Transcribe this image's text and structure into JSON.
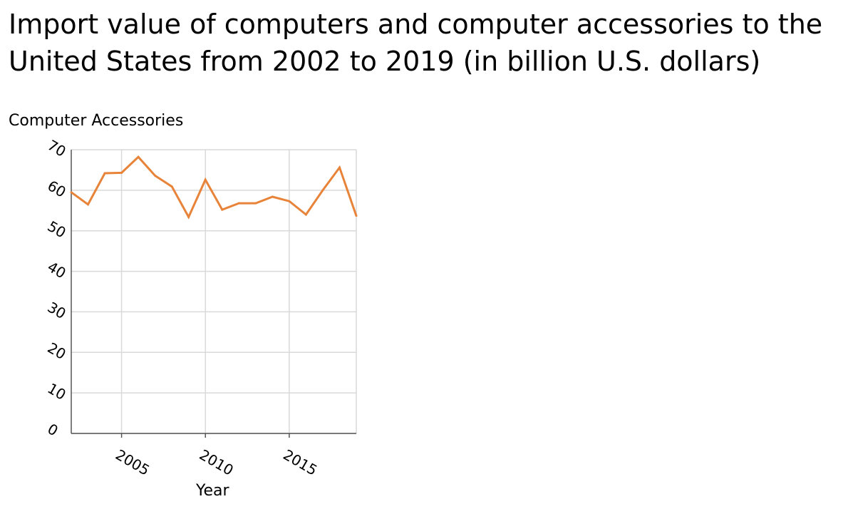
{
  "chart_data": {
    "type": "line",
    "title": "Import value of computers and computer accessories to the United States from 2002 to 2019 (in billion U.S. dollars)",
    "xlabel": "Year",
    "ylabel": "Computer Accessories",
    "xlim": [
      2002,
      2019
    ],
    "ylim": [
      0,
      70
    ],
    "xticks": [
      2005,
      2010,
      2015
    ],
    "yticks": [
      0,
      10,
      20,
      30,
      40,
      50,
      60,
      70
    ],
    "grid": true,
    "x": [
      2002,
      2003,
      2004,
      2005,
      2006,
      2007,
      2008,
      2009,
      2010,
      2011,
      2012,
      2013,
      2014,
      2015,
      2016,
      2017,
      2018,
      2019
    ],
    "series": [
      {
        "values": [
          59.5,
          56.5,
          64.2,
          64.3,
          68.2,
          63.6,
          60.9,
          53.4,
          62.6,
          55.2,
          56.8,
          56.8,
          58.4,
          57.3,
          54.0,
          60.0,
          65.6,
          53.7
        ],
        "color": "#e8843a"
      }
    ],
    "colors": {
      "grid": "#d9d9d9",
      "axis": "#555555",
      "line": "#e8843a"
    }
  }
}
